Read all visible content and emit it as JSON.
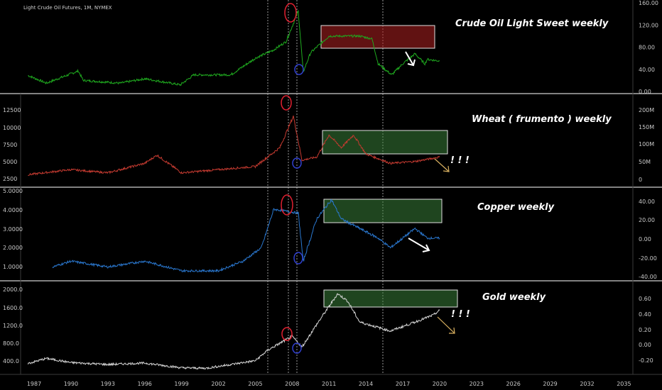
{
  "header": {
    "symbol": "Light Crude Oil Futures, 1M, NYMEX"
  },
  "x_axis": {
    "labels": [
      "1987",
      "1990",
      "1993",
      "1996",
      "1999",
      "2002",
      "2005",
      "2008",
      "2011",
      "2014",
      "2017",
      "2020",
      "2023",
      "2026",
      "2029",
      "2032",
      "2035"
    ]
  },
  "colors": {
    "background": "#000000",
    "oil": "#1faa1f",
    "wheat": "#c43a30",
    "copper": "#2a78d0",
    "gold": "#d6d6d6",
    "separator": "#cfcfcf"
  },
  "chart_data": [
    {
      "type": "line",
      "title": "Crude Oil Light Sweet weekly",
      "series": [
        {
          "x": [
            1986.5,
            1988,
            1990.6,
            1991,
            1994,
            1996,
            1998.9,
            2000,
            2003,
            2005,
            2006.5,
            2007.5,
            2008.5,
            2008.9,
            2009.5,
            2011,
            2012,
            2013.5,
            2014.5,
            2015,
            2016.1,
            2017,
            2018,
            2018.8,
            2019,
            2020
          ],
          "values": [
            29,
            15,
            37,
            20,
            15,
            23,
            12,
            30,
            30,
            60,
            75,
            90,
            145,
            35,
            70,
            100,
            100,
            100,
            95,
            50,
            30,
            50,
            68,
            50,
            58,
            55
          ]
        }
      ],
      "y_ticks": [
        "160.00",
        "120.00",
        "80.00",
        "40.00",
        "0.00"
      ],
      "ylim": [
        0,
        160
      ]
    },
    {
      "type": "line",
      "title": "Wheat ( frumento ) weekly",
      "series": [
        {
          "x": [
            1986.5,
            1990,
            1993,
            1996,
            1997,
            1999,
            2002,
            2005,
            2007,
            2008.1,
            2008.8,
            2010,
            2011,
            2012,
            2013,
            2014,
            2016,
            2018,
            2020
          ],
          "values": [
            2700,
            3500,
            3000,
            4500,
            5800,
            3000,
            3500,
            4000,
            7000,
            12000,
            5000,
            5500,
            9000,
            7000,
            9000,
            6000,
            4500,
            4800,
            5500
          ]
        }
      ],
      "y_ticks": [
        "12500",
        "10000",
        "7500",
        "5000",
        "2500"
      ],
      "ylim": [
        1500,
        14000
      ],
      "right_ticks": [
        "200M",
        "150M",
        "100M",
        "50M",
        "0"
      ]
    },
    {
      "type": "line",
      "title": "Copper weekly",
      "series": [
        {
          "x": [
            1988.5,
            1990,
            1993,
            1996,
            1999,
            2002,
            2004,
            2005.5,
            2006.5,
            2008.5,
            2008.9,
            2010,
            2011.2,
            2012,
            2015,
            2016,
            2018,
            2019,
            2020
          ],
          "values": [
            1.0,
            1.3,
            1.0,
            1.3,
            0.8,
            0.8,
            1.3,
            2.0,
            4.0,
            3.8,
            1.3,
            3.5,
            4.5,
            3.5,
            2.5,
            2.0,
            3.0,
            2.5,
            2.5
          ]
        }
      ],
      "y_ticks": [
        "5.0000",
        "4.0000",
        "3.0000",
        "2.0000",
        "1.0000"
      ],
      "ylim": [
        0.5,
        5.0
      ],
      "right_ticks": [
        "40.00",
        "20.00",
        "0.00",
        "-20.00",
        "-40.00"
      ]
    },
    {
      "type": "line",
      "title": "Gold weekly",
      "series": [
        {
          "x": [
            1986.5,
            1988,
            1990,
            1993,
            1996,
            1999,
            2001,
            2003,
            2005,
            2006,
            2008,
            2008.8,
            2010,
            2011.7,
            2012.5,
            2013.5,
            2016,
            2018,
            2019.5,
            2020
          ],
          "values": [
            370,
            480,
            390,
            350,
            380,
            280,
            270,
            350,
            430,
            650,
            950,
            720,
            1200,
            1850,
            1700,
            1250,
            1060,
            1250,
            1400,
            1500
          ]
        }
      ],
      "y_ticks": [
        "2000.0",
        "1600.0",
        "1200.0",
        "800.0",
        "400.0"
      ],
      "ylim": [
        200,
        2050
      ],
      "right_ticks": [
        "0.60",
        "0.40",
        "0.20",
        "0.00",
        "-0.20"
      ]
    }
  ],
  "annotations": {
    "exclamations": [
      "! ! !",
      "! ! !"
    ]
  }
}
